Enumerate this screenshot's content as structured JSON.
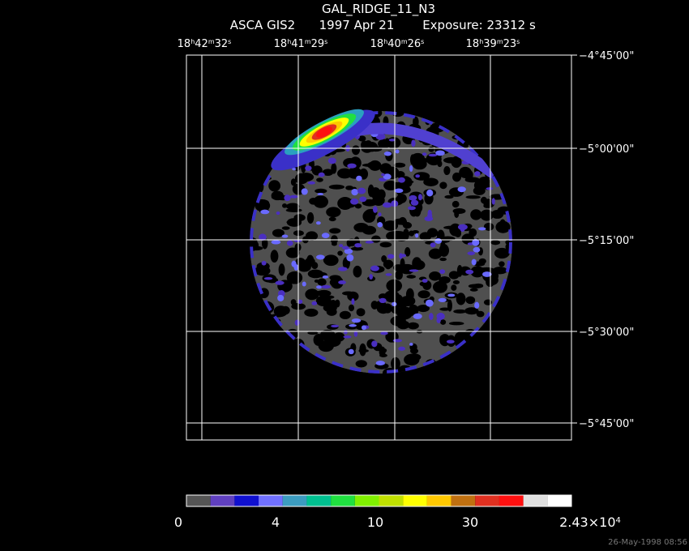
{
  "header": {
    "title": "GAL_RIDGE_11_N3",
    "instrument": "ASCA GIS2",
    "date": "1997 Apr 21",
    "exposure": "Exposure: 23312 s"
  },
  "ra_labels": [
    [
      "18",
      "h",
      "42",
      "m",
      "32",
      "s"
    ],
    [
      "18",
      "h",
      "41",
      "m",
      "29",
      "s"
    ],
    [
      "18",
      "h",
      "40",
      "m",
      "26",
      "s"
    ],
    [
      "18",
      "h",
      "39",
      "m",
      "23",
      "s"
    ]
  ],
  "dec_labels": [
    "−4°45'00\"",
    "−5°00'00\"",
    "−5°15'00\"",
    "−5°30'00\"",
    "−5°45'00\""
  ],
  "colorbar": {
    "colors": [
      "#555555",
      "#6040c0",
      "#1010d0",
      "#7070ff",
      "#3c9cc0",
      "#00c090",
      "#20e040",
      "#80f000",
      "#c0e000",
      "#ffff00",
      "#ffc800",
      "#c07010",
      "#e03020",
      "#ff1010",
      "#e0e0e0",
      "#ffffff"
    ],
    "labels": [
      [
        "0"
      ],
      [
        "4"
      ],
      [
        "10"
      ],
      [
        "30"
      ],
      [
        "2.43×10",
        "4"
      ]
    ]
  },
  "footer": "26-May-1998 08:56"
}
